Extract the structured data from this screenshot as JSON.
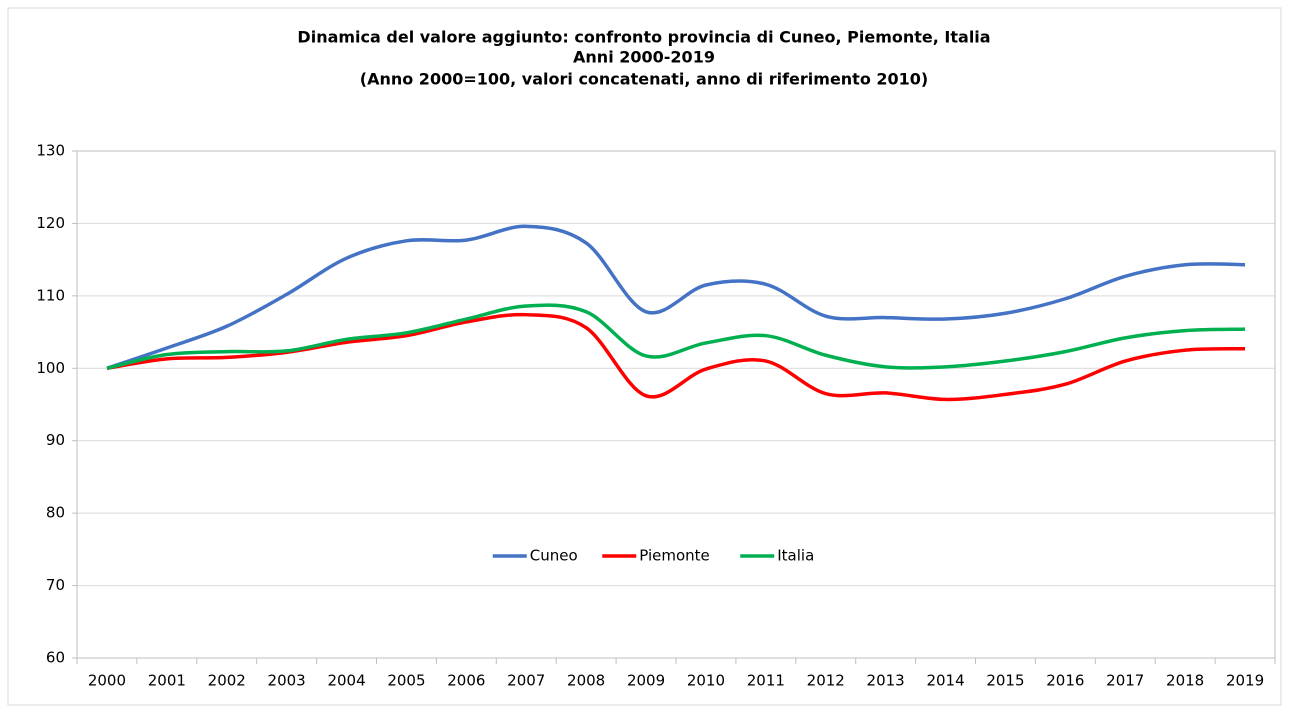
{
  "chart_data": {
    "type": "line",
    "title": "Dinamica del valore aggiunto: confronto provincia di Cuneo, Piemonte, Italia",
    "subtitle": [
      "Anni 2000-2019",
      "(Anno 2000=100, valori concatenati, anno di riferimento 2010)"
    ],
    "categories": [
      "2000",
      "2001",
      "2002",
      "2003",
      "2004",
      "2005",
      "2006",
      "2007",
      "2008",
      "2009",
      "2010",
      "2011",
      "2012",
      "2013",
      "2014",
      "2015",
      "2016",
      "2017",
      "2018",
      "2019"
    ],
    "series": [
      {
        "name": "Cuneo",
        "color": "#4472c4",
        "values": [
          100,
          102.8,
          105.8,
          110.2,
          115.2,
          117.6,
          117.7,
          119.6,
          117.3,
          107.8,
          111.5,
          111.6,
          107.2,
          107.0,
          106.8,
          107.6,
          109.6,
          112.7,
          114.3,
          114.3
        ]
      },
      {
        "name": "Piemonte",
        "color": "#ff0000",
        "values": [
          100,
          101.3,
          101.5,
          102.2,
          103.6,
          104.5,
          106.4,
          107.4,
          105.6,
          96.2,
          99.9,
          101.0,
          96.5,
          96.6,
          95.7,
          96.4,
          97.8,
          101.0,
          102.5,
          102.7
        ]
      },
      {
        "name": "Italia",
        "color": "#00b050",
        "values": [
          100,
          101.9,
          102.3,
          102.4,
          104.0,
          104.9,
          106.8,
          108.6,
          107.8,
          101.7,
          103.5,
          104.5,
          101.8,
          100.2,
          100.2,
          101.0,
          102.3,
          104.2,
          105.2,
          105.4
        ]
      }
    ],
    "ylim": [
      60,
      130
    ],
    "yticks": [
      60,
      70,
      80,
      90,
      100,
      110,
      120,
      130
    ],
    "grid": true,
    "legend": "center"
  }
}
